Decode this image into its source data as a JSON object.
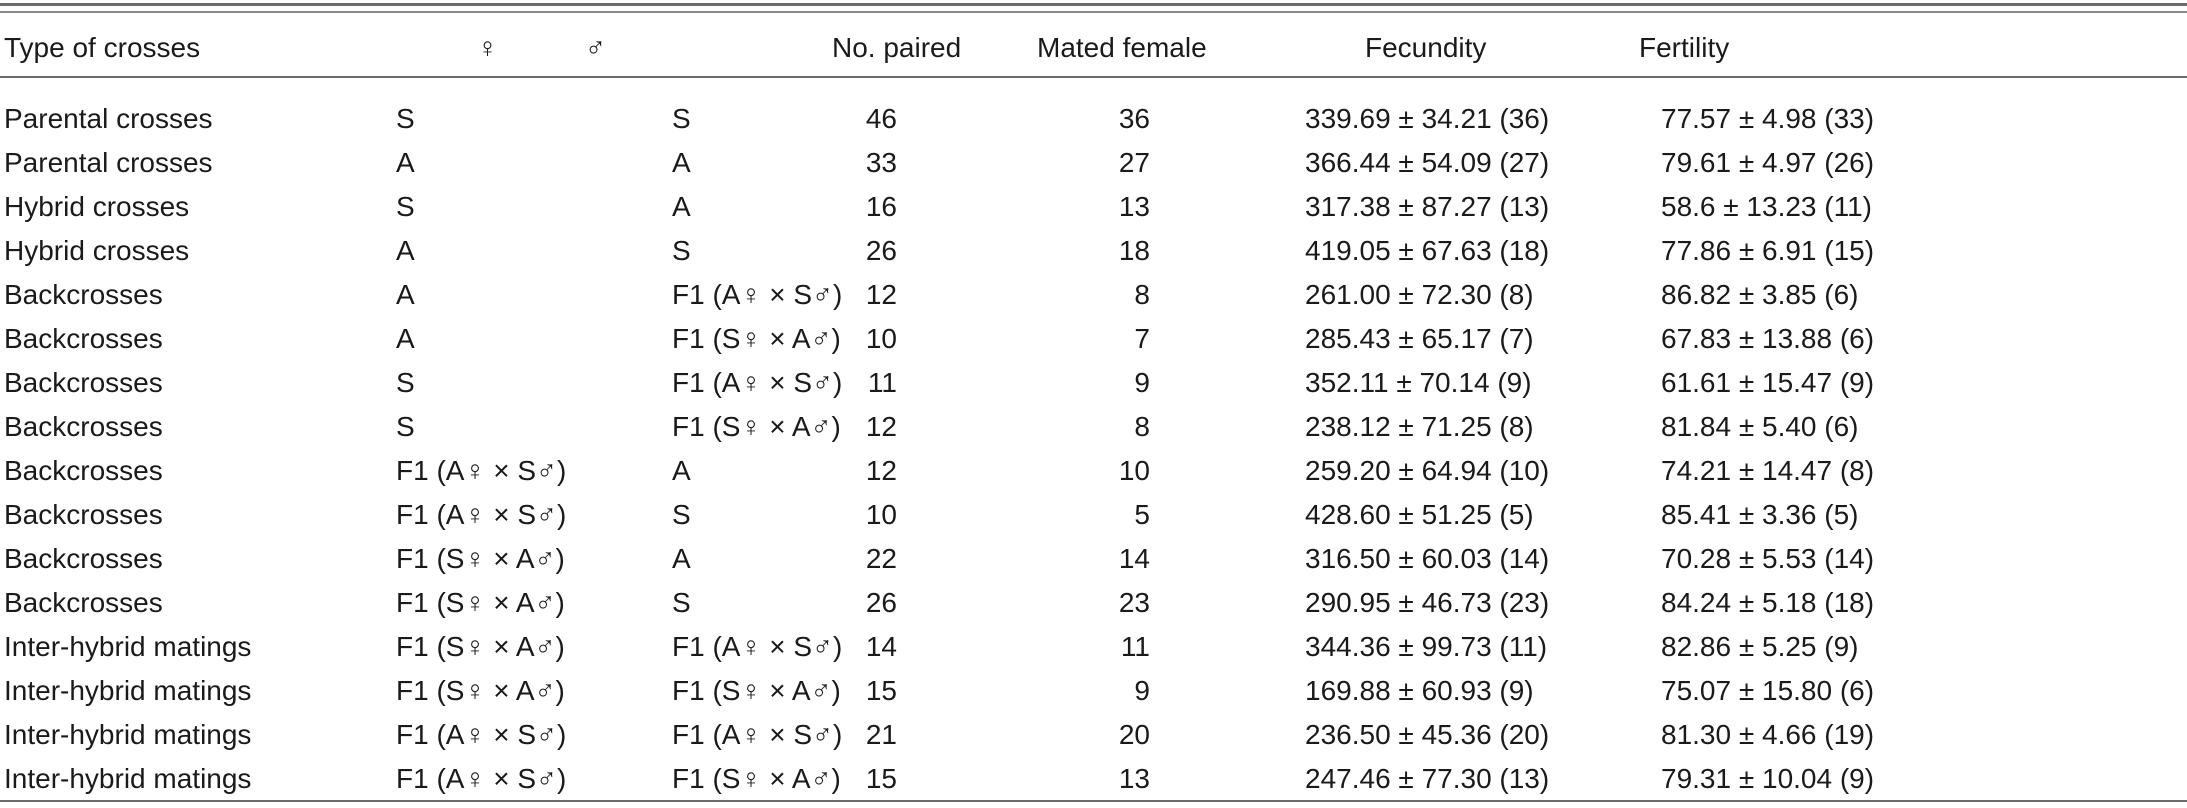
{
  "table": {
    "headers": {
      "type": "Type of crosses",
      "female": "♀",
      "male": "♂",
      "no_paired": "No. paired",
      "mated_female": "Mated female",
      "fecundity": "Fecundity",
      "fertility": "Fertility"
    },
    "rows": [
      {
        "type": "Parental crosses",
        "female": "S",
        "male": "S",
        "no_paired": "46",
        "mated_female": "36",
        "fecundity": "339.69 ± 34.21 (36)",
        "fertility": "77.57 ± 4.98 (33)"
      },
      {
        "type": "Parental crosses",
        "female": "A",
        "male": "A",
        "no_paired": "33",
        "mated_female": "27",
        "fecundity": "366.44 ± 54.09 (27)",
        "fertility": "79.61 ± 4.97 (26)"
      },
      {
        "type": "Hybrid crosses",
        "female": "S",
        "male": "A",
        "no_paired": "16",
        "mated_female": "13",
        "fecundity": "317.38 ± 87.27 (13)",
        "fertility": "58.6 ± 13.23 (11)"
      },
      {
        "type": "Hybrid crosses",
        "female": "A",
        "male": "S",
        "no_paired": "26",
        "mated_female": "18",
        "fecundity": "419.05 ± 67.63 (18)",
        "fertility": "77.86 ± 6.91 (15)"
      },
      {
        "type": "Backcrosses",
        "female": "A",
        "male": "F1 (A♀ × S♂)",
        "no_paired": "12",
        "mated_female": "8",
        "fecundity": "261.00 ± 72.30 (8)",
        "fertility": "86.82 ± 3.85 (6)"
      },
      {
        "type": "Backcrosses",
        "female": "A",
        "male": "F1 (S♀ × A♂)",
        "no_paired": "10",
        "mated_female": "7",
        "fecundity": "285.43 ± 65.17 (7)",
        "fertility": "67.83 ± 13.88 (6)"
      },
      {
        "type": "Backcrosses",
        "female": "S",
        "male": "F1 (A♀ × S♂)",
        "no_paired": "11",
        "mated_female": "9",
        "fecundity": "352.11 ± 70.14 (9)",
        "fertility": "61.61 ± 15.47 (9)"
      },
      {
        "type": "Backcrosses",
        "female": "S",
        "male": "F1 (S♀ × A♂)",
        "no_paired": "12",
        "mated_female": "8",
        "fecundity": "238.12 ± 71.25 (8)",
        "fertility": "81.84 ± 5.40 (6)"
      },
      {
        "type": "Backcrosses",
        "female": "F1 (A♀ × S♂)",
        "male": "A",
        "no_paired": "12",
        "mated_female": "10",
        "fecundity": "259.20 ± 64.94 (10)",
        "fertility": "74.21 ± 14.47 (8)"
      },
      {
        "type": "Backcrosses",
        "female": "F1 (A♀ × S♂)",
        "male": "S",
        "no_paired": "10",
        "mated_female": "5",
        "fecundity": "428.60 ± 51.25 (5)",
        "fertility": "85.41 ± 3.36 (5)"
      },
      {
        "type": "Backcrosses",
        "female": "F1 (S♀ × A♂)",
        "male": "A",
        "no_paired": "22",
        "mated_female": "14",
        "fecundity": "316.50 ± 60.03 (14)",
        "fertility": "70.28 ± 5.53 (14)"
      },
      {
        "type": "Backcrosses",
        "female": "F1 (S♀ × A♂)",
        "male": "S",
        "no_paired": "26",
        "mated_female": "23",
        "fecundity": "290.95 ± 46.73 (23)",
        "fertility": "84.24 ± 5.18 (18)"
      },
      {
        "type": "Inter-hybrid matings",
        "female": "F1 (S♀ × A♂)",
        "male": "F1 (A♀ × S♂)",
        "no_paired": "14",
        "mated_female": "11",
        "fecundity": "344.36 ± 99.73 (11)",
        "fertility": "82.86 ± 5.25 (9)"
      },
      {
        "type": "Inter-hybrid matings",
        "female": "F1 (S♀ × A♂)",
        "male": "F1 (S♀ × A♂)",
        "no_paired": "15",
        "mated_female": "9",
        "fecundity": "169.88 ± 60.93 (9)",
        "fertility": "75.07 ± 15.80 (6)"
      },
      {
        "type": "Inter-hybrid matings",
        "female": "F1 (A♀ × S♂)",
        "male": "F1 (A♀ × S♂)",
        "no_paired": "21",
        "mated_female": "20",
        "fecundity": "236.50 ± 45.36 (20)",
        "fertility": "81.30 ± 4.66 (19)"
      },
      {
        "type": "Inter-hybrid matings",
        "female": "F1 (A♀ × S♂)",
        "male": "F1 (S♀ × A♂)",
        "no_paired": "15",
        "mated_female": "13",
        "fecundity": "247.46 ± 77.30 (13)",
        "fertility": "79.31 ± 10.04 (9)"
      }
    ]
  }
}
